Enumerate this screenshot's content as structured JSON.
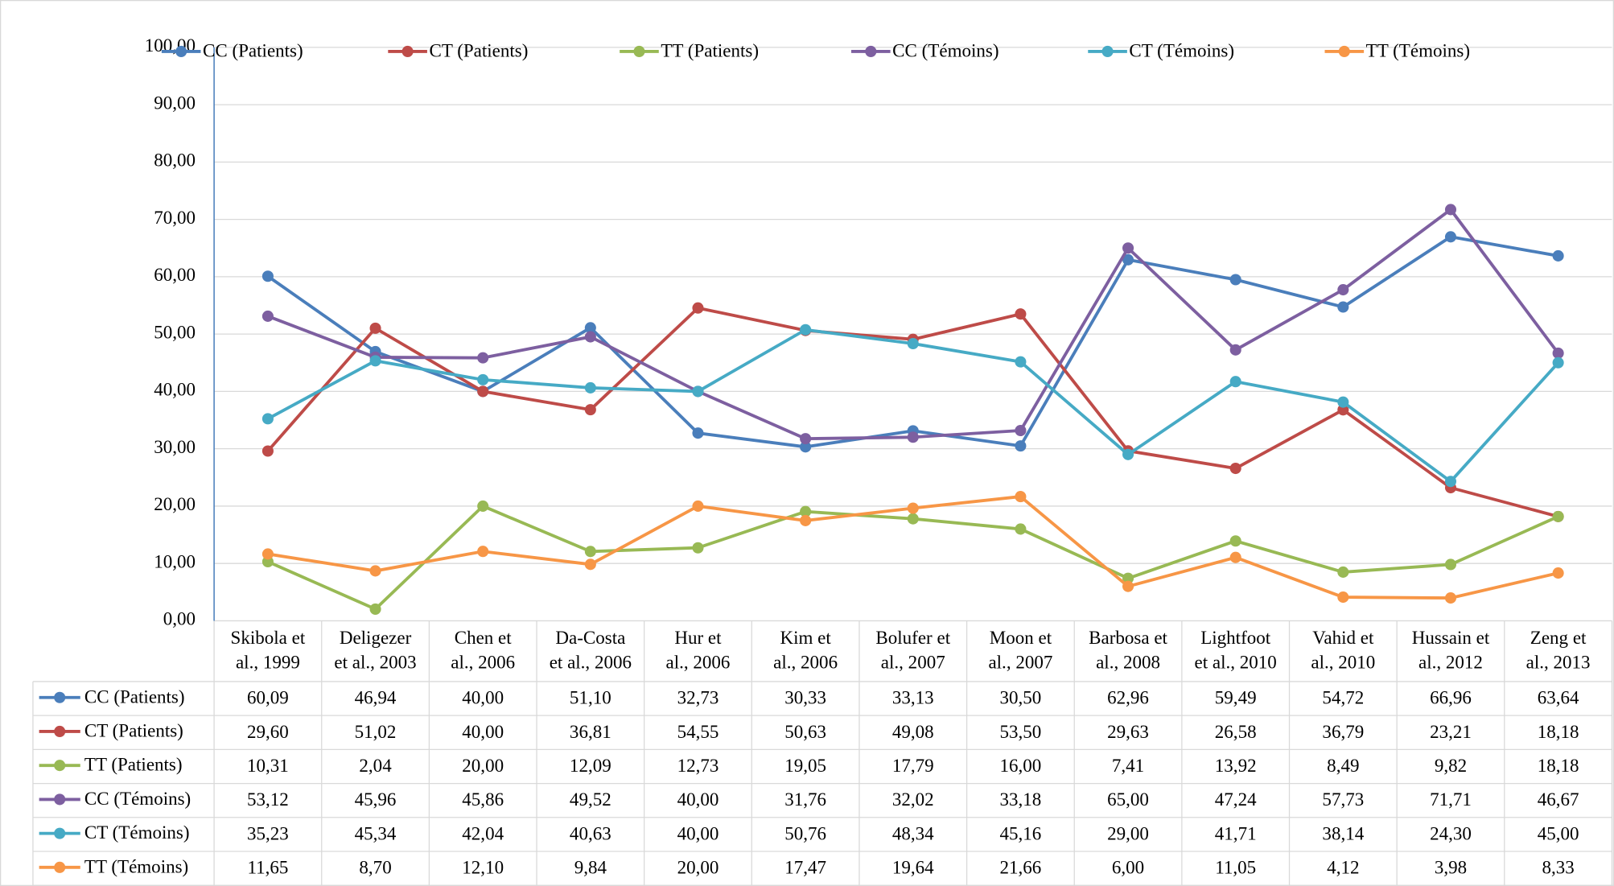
{
  "chart_data": {
    "type": "line",
    "categories": [
      [
        "Skibola et",
        "al., 1999"
      ],
      [
        "Deligezer",
        "et al., 2003"
      ],
      [
        "Chen et",
        "al., 2006"
      ],
      [
        "Da-Costa",
        "et al., 2006"
      ],
      [
        "Hur et",
        "al., 2006"
      ],
      [
        "Kim et",
        "al., 2006"
      ],
      [
        "Bolufer et",
        "al., 2007"
      ],
      [
        "Moon et",
        "al., 2007"
      ],
      [
        "Barbosa et",
        "al., 2008"
      ],
      [
        "Lightfoot",
        "et al., 2010"
      ],
      [
        "Vahid et",
        "al., 2010"
      ],
      [
        "Hussain et",
        "al., 2012"
      ],
      [
        "Zeng et",
        "al., 2013"
      ]
    ],
    "ylim": [
      0,
      100
    ],
    "yticks": [
      {
        "value": 0,
        "label": "0,00"
      },
      {
        "value": 10,
        "label": "10,00"
      },
      {
        "value": 20,
        "label": "20,00"
      },
      {
        "value": 30,
        "label": "30,00"
      },
      {
        "value": 40,
        "label": "40,00"
      },
      {
        "value": 50,
        "label": "50,00"
      },
      {
        "value": 60,
        "label": "60,00"
      },
      {
        "value": 70,
        "label": "70,00"
      },
      {
        "value": 80,
        "label": "80,00"
      },
      {
        "value": 90,
        "label": "90,00"
      },
      {
        "value": 100,
        "label": "100,00"
      }
    ],
    "grid": true,
    "legend": "top",
    "series": [
      {
        "name": "CC (Patients)",
        "color": "#4a7ebb",
        "values": [
          60.09,
          46.94,
          40.0,
          51.1,
          32.73,
          30.33,
          33.13,
          30.5,
          62.96,
          59.49,
          54.72,
          66.96,
          63.64
        ],
        "value_labels": [
          "60,09",
          "46,94",
          "40,00",
          "51,10",
          "32,73",
          "30,33",
          "33,13",
          "30,50",
          "62,96",
          "59,49",
          "54,72",
          "66,96",
          "63,64"
        ]
      },
      {
        "name": "CT (Patients)",
        "color": "#be4b48",
        "values": [
          29.6,
          51.02,
          40.0,
          36.81,
          54.55,
          50.63,
          49.08,
          53.5,
          29.63,
          26.58,
          36.79,
          23.21,
          18.18
        ],
        "value_labels": [
          "29,60",
          "51,02",
          "40,00",
          "36,81",
          "54,55",
          "50,63",
          "49,08",
          "53,50",
          "29,63",
          "26,58",
          "36,79",
          "23,21",
          "18,18"
        ]
      },
      {
        "name": "TT (Patients)",
        "color": "#98b954",
        "values": [
          10.31,
          2.04,
          20.0,
          12.09,
          12.73,
          19.05,
          17.79,
          16.0,
          7.41,
          13.92,
          8.49,
          9.82,
          18.18
        ],
        "value_labels": [
          "10,31",
          "2,04",
          "20,00",
          "12,09",
          "12,73",
          "19,05",
          "17,79",
          "16,00",
          "7,41",
          "13,92",
          "8,49",
          "9,82",
          "18,18"
        ]
      },
      {
        "name": "CC (Témoins)",
        "color": "#7d5fa0",
        "values": [
          53.12,
          45.96,
          45.86,
          49.52,
          40.0,
          31.76,
          32.02,
          33.18,
          65.0,
          47.24,
          57.73,
          71.71,
          46.67
        ],
        "value_labels": [
          "53,12",
          "45,96",
          "45,86",
          "49,52",
          "40,00",
          "31,76",
          "32,02",
          "33,18",
          "65,00",
          "47,24",
          "57,73",
          "71,71",
          "46,67"
        ]
      },
      {
        "name": "CT (Témoins)",
        "color": "#46aac5",
        "values": [
          35.23,
          45.34,
          42.04,
          40.63,
          40.0,
          50.76,
          48.34,
          45.16,
          29.0,
          41.71,
          38.14,
          24.3,
          45.0
        ],
        "value_labels": [
          "35,23",
          "45,34",
          "42,04",
          "40,63",
          "40,00",
          "50,76",
          "48,34",
          "45,16",
          "29,00",
          "41,71",
          "38,14",
          "24,30",
          "45,00"
        ]
      },
      {
        "name": "TT (Témoins)",
        "color": "#f79646",
        "values": [
          11.65,
          8.7,
          12.1,
          9.84,
          20.0,
          17.47,
          19.64,
          21.66,
          6.0,
          11.05,
          4.12,
          3.98,
          8.33
        ],
        "value_labels": [
          "11,65",
          "8,70",
          "12,10",
          "9,84",
          "20,00",
          "17,47",
          "19,64",
          "21,66",
          "6,00",
          "11,05",
          "4,12",
          "3,98",
          "8,33"
        ]
      }
    ]
  }
}
